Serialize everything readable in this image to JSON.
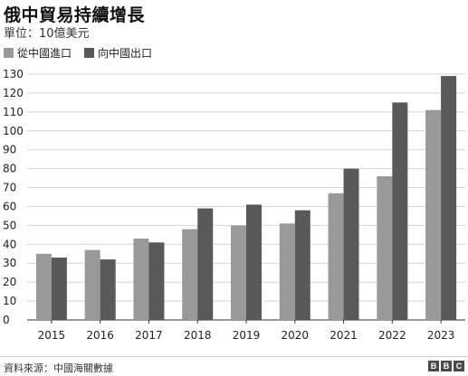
{
  "header": {
    "title": "俄中貿易持續增長",
    "subtitle": "單位：10億美元"
  },
  "footer": {
    "source": "資料來源：中國海關數據",
    "logo_letters": [
      "B",
      "B",
      "C"
    ]
  },
  "colors": {
    "import": "#999999",
    "export": "#595959",
    "grid": "#d4d4d4",
    "axis": "#333333"
  },
  "chart_data": {
    "type": "bar",
    "title": "俄中貿易持續增長",
    "subtitle": "單位：10億美元",
    "categories": [
      "2015",
      "2016",
      "2017",
      "2018",
      "2019",
      "2020",
      "2021",
      "2022",
      "2023"
    ],
    "series": [
      {
        "name": "從中國進口",
        "values": [
          35,
          37,
          43,
          48,
          50,
          51,
          67,
          76,
          111
        ]
      },
      {
        "name": "向中國出口",
        "values": [
          33,
          32,
          41,
          59,
          61,
          58,
          80,
          115,
          129
        ]
      }
    ],
    "ylim": [
      0,
      130
    ],
    "yticks": [
      0,
      10,
      20,
      30,
      40,
      50,
      60,
      70,
      80,
      90,
      100,
      110,
      120,
      130
    ],
    "grid": true,
    "legend": "top-left"
  }
}
